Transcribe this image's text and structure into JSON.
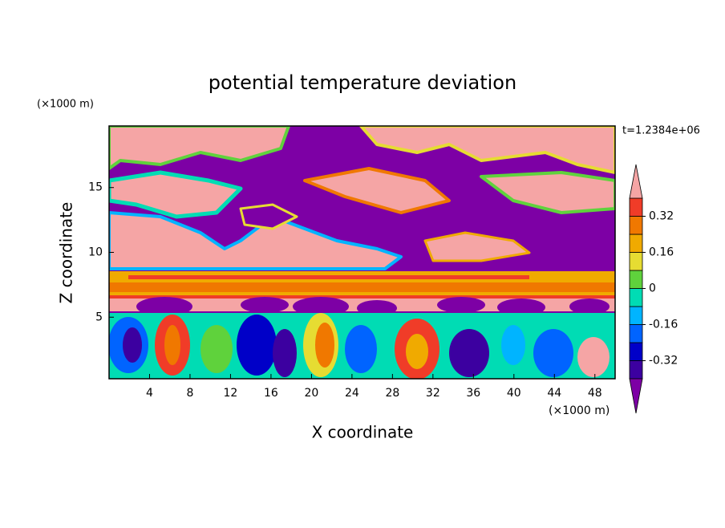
{
  "chart_data": {
    "type": "contour",
    "title": "potential temperature deviation",
    "x_label": "X coordinate",
    "y_label": "Z coordinate",
    "x_unit": "(×1000 m)",
    "y_unit": "(×1000 m)",
    "time_label": "t=1.2384e+06",
    "xlim": [
      0,
      50
    ],
    "xticks": [
      4,
      8,
      12,
      16,
      20,
      24,
      28,
      32,
      36,
      40,
      44,
      48
    ],
    "ylim": [
      0.25,
      19.75
    ],
    "yticks": [
      5,
      10,
      15
    ],
    "colorbar": {
      "levels": [
        -0.4,
        -0.32,
        -0.24,
        -0.16,
        -0.08,
        0,
        0.08,
        0.16,
        0.24,
        0.32,
        0.4
      ],
      "colors": [
        "#7d00a5",
        "#3c00a0",
        "#0000c8",
        "#0064ff",
        "#00b4ff",
        "#00dcb4",
        "#5fd23c",
        "#e6dc32",
        "#f0aa00",
        "#f07800",
        "#f03c28",
        "#f5a5a5"
      ],
      "ticks": [
        -0.32,
        -0.16,
        0,
        0.16,
        0.32
      ]
    }
  }
}
